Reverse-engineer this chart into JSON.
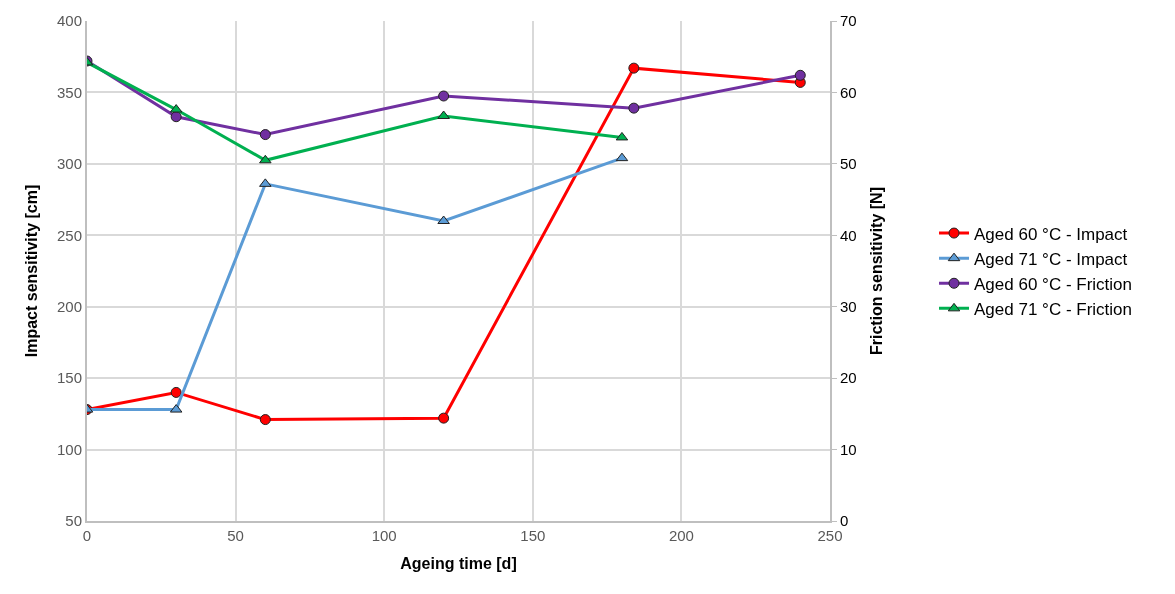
{
  "chart_data": {
    "type": "line",
    "xlabel": "Ageing time [d]",
    "ylabel": "Impact sensitivity [cm]",
    "y2label": "Friction sensitivity [N]",
    "xlim": [
      0,
      250
    ],
    "xticks": [
      0,
      50,
      100,
      150,
      200,
      250
    ],
    "ylim": [
      50,
      400
    ],
    "yticks": [
      50,
      100,
      150,
      200,
      250,
      300,
      350,
      400
    ],
    "y2lim": [
      0,
      70
    ],
    "y2ticks": [
      0,
      10,
      20,
      30,
      40,
      50,
      60,
      70
    ],
    "grid": true,
    "legend": "right",
    "line_style": "solid",
    "series": [
      {
        "name": "Aged 60 °C - Impact",
        "color": "#ff0000",
        "marker": "circle",
        "x": [
          0,
          30,
          60,
          120,
          184,
          240
        ],
        "values": [
          128,
          140,
          121,
          122,
          367,
          357
        ]
      },
      {
        "name": "Aged 71 °C - Impact",
        "color": "#5b9bd5",
        "marker": "triangle",
        "x": [
          0,
          30,
          60,
          120,
          180
        ],
        "values": [
          128,
          128,
          286,
          260,
          304
        ]
      },
      {
        "name": "Aged 60 °C - Friction",
        "color": "#7030a0",
        "marker": "circle",
        "axis": "y2",
        "x": [
          0,
          30,
          60,
          120,
          184,
          240
        ],
        "values": [
          64.4,
          56.6,
          54.1,
          59.5,
          57.8,
          62.4
        ]
      },
      {
        "name": "Aged 71 °C - Friction",
        "color": "#00b050",
        "marker": "triangle",
        "axis": "y2",
        "x": [
          0,
          30,
          60,
          120,
          180
        ],
        "values": [
          64.2,
          57.6,
          50.5,
          56.7,
          53.7
        ]
      }
    ]
  }
}
